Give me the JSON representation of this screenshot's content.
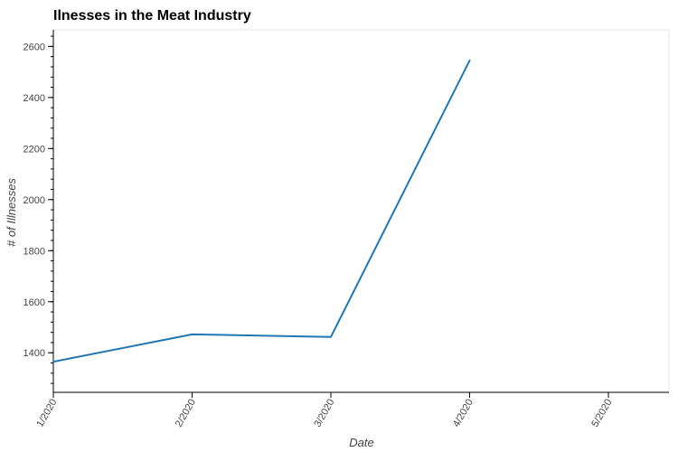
{
  "chart_data": {
    "type": "line",
    "title": "Ilnesses in the Meat Industry",
    "xlabel": "Date",
    "ylabel": "# of Illnesses",
    "x": [
      "1/2020",
      "2/2020",
      "3/2020",
      "4/2020"
    ],
    "series": [
      {
        "values": [
          1365,
          1472,
          1462,
          2545
        ],
        "color": "#1f77b4"
      }
    ],
    "x_ticks": [
      "1/2020",
      "2/2020",
      "3/2020",
      "4/2020",
      "5/2020"
    ],
    "y_ticks": [
      1400,
      1600,
      1800,
      2000,
      2200,
      2400,
      2600
    ],
    "ylim": [
      1245,
      2665
    ],
    "xlim": [
      "1/2020",
      "5/2020 + ~0.4 month"
    ],
    "grid": false,
    "legend": "none"
  }
}
